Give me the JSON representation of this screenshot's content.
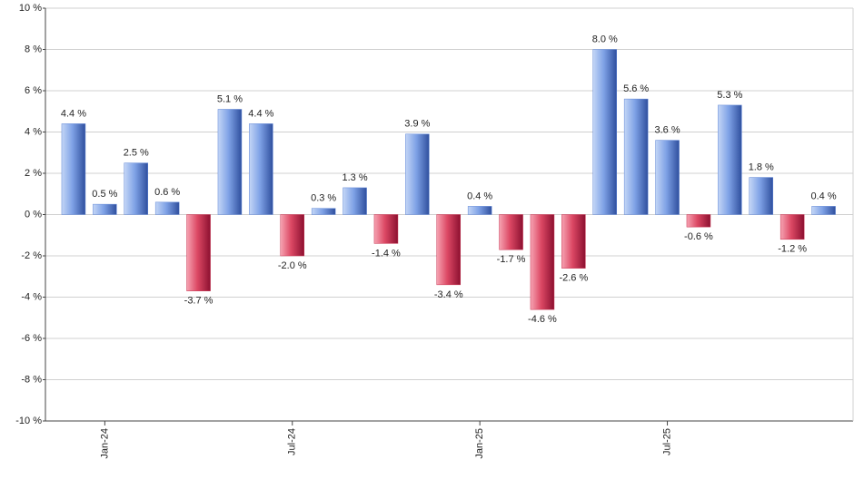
{
  "chart_data": {
    "type": "bar",
    "categories": [
      null,
      "Jan-24",
      null,
      null,
      null,
      null,
      null,
      "Jul-24",
      null,
      null,
      null,
      null,
      null,
      "Jan-25",
      null,
      null,
      null,
      null,
      null,
      "Jul-25",
      null,
      null,
      null,
      null,
      null
    ],
    "values": [
      4.4,
      0.5,
      2.5,
      0.6,
      -3.7,
      5.1,
      4.4,
      -2.0,
      0.3,
      1.3,
      -1.4,
      3.9,
      -3.4,
      0.4,
      -1.7,
      -4.6,
      -2.6,
      8.0,
      5.6,
      3.6,
      -0.6,
      5.3,
      1.8,
      -1.2,
      0.4
    ],
    "value_labels": [
      "4.4 %",
      "0.5 %",
      "2.5 %",
      "0.6 %",
      "-3.7 %",
      "5.1 %",
      "4.4 %",
      "-2.0 %",
      "0.3 %",
      "1.3 %",
      "-1.4 %",
      "3.9 %",
      "-3.4 %",
      "0.4 %",
      "-1.7 %",
      "-4.6 %",
      "-2.6 %",
      "8.0 %",
      "5.6 %",
      "3.6 %",
      "-0.6 %",
      "5.3 %",
      "1.8 %",
      "-1.2 %",
      "0.4 %"
    ],
    "colors": {
      "positive": "#5f86d6",
      "negative": "#c8304e"
    },
    "ylim": [
      -10,
      10
    ],
    "yticks": [
      {
        "value": -10,
        "label": "-10 %"
      },
      {
        "value": -8,
        "label": "-8 %"
      },
      {
        "value": -6,
        "label": "-6 %"
      },
      {
        "value": -4,
        "label": "-4 %"
      },
      {
        "value": -2,
        "label": "-2 %"
      },
      {
        "value": 0,
        "label": "0 %"
      },
      {
        "value": 2,
        "label": "2 %"
      },
      {
        "value": 4,
        "label": "4 %"
      },
      {
        "value": 6,
        "label": "6 %"
      },
      {
        "value": 8,
        "label": "8 %"
      },
      {
        "value": 10,
        "label": "10 %"
      }
    ],
    "grid": true
  }
}
